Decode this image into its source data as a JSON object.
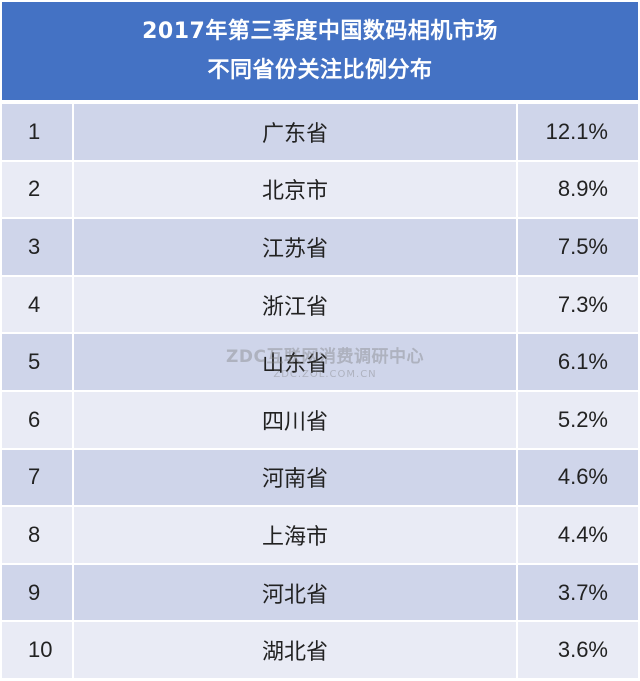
{
  "chart_data": {
    "type": "table",
    "title_line1": "2017年第三季度中国数码相机市场",
    "title_line2": "不同省份关注比例分布",
    "rows": [
      {
        "rank": "1",
        "province": "广东省",
        "share": "12.1%"
      },
      {
        "rank": "2",
        "province": "北京市",
        "share": "8.9%"
      },
      {
        "rank": "3",
        "province": "江苏省",
        "share": "7.5%"
      },
      {
        "rank": "4",
        "province": "浙江省",
        "share": "7.3%"
      },
      {
        "rank": "5",
        "province": "山东省",
        "share": "6.1%"
      },
      {
        "rank": "6",
        "province": "四川省",
        "share": "5.2%"
      },
      {
        "rank": "7",
        "province": "河南省",
        "share": "4.6%"
      },
      {
        "rank": "8",
        "province": "上海市",
        "share": "4.4%"
      },
      {
        "rank": "9",
        "province": "河北省",
        "share": "3.7%"
      },
      {
        "rank": "10",
        "province": "湖北省",
        "share": "3.6%"
      }
    ],
    "colors": {
      "header": "#4472c4",
      "row_dark": "#cfd5ea",
      "row_light": "#e9ebf5"
    }
  },
  "watermark": {
    "line1": "ZDC互联网消费调研中心",
    "line2": "ZDC.ZOL.COM.CN"
  }
}
